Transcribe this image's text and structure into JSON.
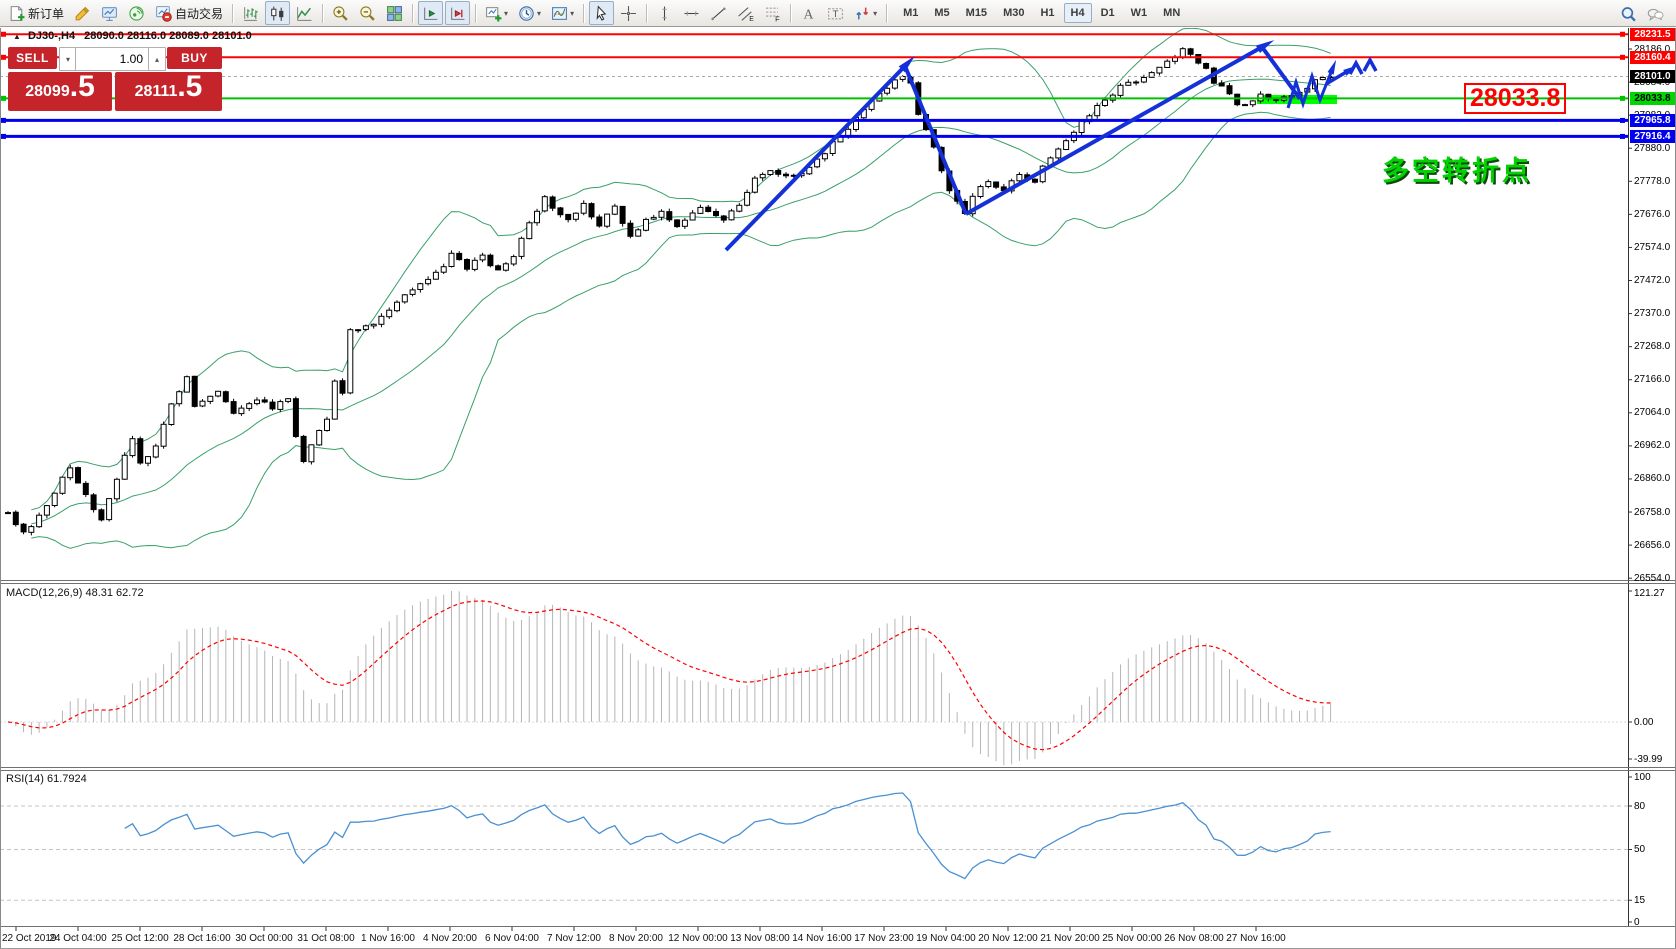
{
  "toolbar": {
    "groups": [
      {
        "buttons": [
          {
            "name": "new-order",
            "icon": "new-order",
            "label": "新订单"
          },
          {
            "name": "metaeditor",
            "icon": "metaeditor"
          },
          {
            "name": "strategy-tester",
            "icon": "strategy-tester"
          },
          {
            "name": "signals",
            "icon": "signals"
          },
          {
            "name": "algo-trading",
            "icon": "algo-trading",
            "label": "自动交易"
          }
        ]
      },
      {
        "buttons": [
          {
            "name": "bar-chart",
            "icon": "bars"
          },
          {
            "name": "candlestick-chart",
            "icon": "candles",
            "selected": true
          },
          {
            "name": "line-chart",
            "icon": "linechart"
          }
        ]
      },
      {
        "buttons": [
          {
            "name": "zoom-in",
            "icon": "zoom-in"
          },
          {
            "name": "zoom-out",
            "icon": "zoom-out"
          },
          {
            "name": "tile-windows",
            "icon": "tile-windows"
          }
        ]
      },
      {
        "buttons": [
          {
            "name": "auto-scroll",
            "icon": "auto-scroll",
            "selected": true
          },
          {
            "name": "chart-shift",
            "icon": "chart-shift",
            "selected": true
          }
        ]
      },
      {
        "buttons": [
          {
            "name": "new-chart",
            "icon": "new-chart",
            "dropdown": true
          },
          {
            "name": "periods",
            "icon": "period-clock",
            "dropdown": true
          },
          {
            "name": "templates",
            "icon": "templates",
            "dropdown": true
          }
        ]
      },
      {
        "buttons": [
          {
            "name": "cursor",
            "icon": "cursor",
            "selected": true
          },
          {
            "name": "crosshair",
            "icon": "crosshair"
          }
        ]
      },
      {
        "buttons": [
          {
            "name": "vertical-line",
            "icon": "vline"
          },
          {
            "name": "horizontal-line",
            "icon": "hline"
          },
          {
            "name": "trendline",
            "icon": "tline"
          },
          {
            "name": "equidistant-channel",
            "icon": "channel"
          },
          {
            "name": "fibonacci",
            "icon": "fibo"
          }
        ]
      },
      {
        "buttons": [
          {
            "name": "text",
            "icon": "text-a"
          },
          {
            "name": "text-label",
            "icon": "text-label"
          },
          {
            "name": "arrows",
            "icon": "arrows-shapes",
            "dropdown": true
          }
        ]
      }
    ],
    "timeframes": [
      "M1",
      "M5",
      "M15",
      "M30",
      "H1",
      "H4",
      "D1",
      "W1",
      "MN"
    ],
    "selected_timeframe": "H4",
    "right_icons": [
      {
        "name": "search",
        "icon": "search"
      },
      {
        "name": "chat",
        "icon": "chat"
      }
    ]
  },
  "trade_panel": {
    "sell_label": "SELL",
    "buy_label": "BUY",
    "volume": "1.00",
    "sell_price": "28099",
    "sell_price_big": ".5",
    "buy_price": "28111",
    "buy_price_big": ".5"
  },
  "chart": {
    "symbol_period": "DJ30-,H4",
    "ohlc_text": "28090.0 28116.0 28089.0 28101.0"
  },
  "price_axis": {
    "ticks": [
      "28186.0",
      "28084.0",
      "27982.0",
      "27880.0",
      "27778.0",
      "27676.0",
      "27574.0",
      "27472.0",
      "27370.0",
      "27268.0",
      "27166.0",
      "27064.0",
      "26962.0",
      "26860.0",
      "26758.0",
      "26656.0",
      "26554.0"
    ],
    "badges": [
      {
        "text": "28231.5",
        "bg": "#ff0000",
        "fg": "#ffffff"
      },
      {
        "text": "28160.4",
        "bg": "#ff0000",
        "fg": "#ffffff"
      },
      {
        "text": "28101.0",
        "bg": "#000000",
        "fg": "#ffffff"
      },
      {
        "text": "28033.8",
        "bg": "#00d600",
        "fg": "#000000"
      },
      {
        "text": "27965.8",
        "bg": "#0000ee",
        "fg": "#ffffff"
      },
      {
        "text": "27916.4",
        "bg": "#0000ee",
        "fg": "#ffffff"
      }
    ]
  },
  "hlines": [
    {
      "price": 28231.5,
      "color": "#ff0000",
      "width": 2
    },
    {
      "price": 28160.4,
      "color": "#ff0000",
      "width": 2
    },
    {
      "price": 28033.8,
      "color": "#00c300",
      "width": 2
    },
    {
      "price": 27965.8,
      "color": "#0000ee",
      "width": 3
    },
    {
      "price": 27916.4,
      "color": "#0000ee",
      "width": 3
    }
  ],
  "current_price": {
    "value": 28101.0,
    "line_color": "#aaaaaa"
  },
  "indicators": {
    "macd": {
      "label": "MACD(12,26,9) 48.31 62.72",
      "value": 48.31,
      "signal": 62.72,
      "axis_labels": [
        "121.27",
        "0.00",
        "-39.99"
      ],
      "histogram_color": "#b5b5b5",
      "signal_color": "#ff0000"
    },
    "rsi": {
      "label": "RSI(14) 61.7924",
      "value": 61.7924,
      "axis_labels": [
        "100",
        "80",
        "50",
        "15",
        "0"
      ],
      "levels": [
        80,
        50,
        15
      ],
      "line_color": "#4a90d2"
    }
  },
  "time_axis": {
    "labels": [
      "22 Oct 2019",
      "24 Oct 04:00",
      "25 Oct 12:00",
      "28 Oct 16:00",
      "30 Oct 00:00",
      "31 Oct 08:00",
      "1 Nov 16:00",
      "4 Nov 20:00",
      "6 Nov 04:00",
      "7 Nov 12:00",
      "8 Nov 20:00",
      "12 Nov 00:00",
      "13 Nov 08:00",
      "14 Nov 16:00",
      "17 Nov 23:00",
      "19 Nov 04:00",
      "20 Nov 12:00",
      "21 Nov 20:00",
      "25 Nov 00:00",
      "26 Nov 08:00",
      "27 Nov 16:00"
    ]
  },
  "annotations": {
    "big_price": "28033.8",
    "turning_point": "多空转折点",
    "highlight_color": "#00ff00",
    "highlight_rect": [
      1257,
      95,
      80,
      9
    ],
    "arrow_color": "#1430d8",
    "trend_arrows": [
      {
        "points": [
          [
            726,
            250
          ],
          [
            905,
            66
          ]
        ],
        "head": true
      },
      {
        "points": [
          [
            905,
            66
          ],
          [
            966,
            214
          ]
        ],
        "head": false
      },
      {
        "points": [
          [
            966,
            214
          ],
          [
            1262,
            47
          ]
        ],
        "head": true
      },
      {
        "points": [
          [
            1262,
            47
          ],
          [
            1300,
            99
          ]
        ],
        "head": false
      }
    ],
    "scribbles": [
      {
        "points": [
          [
            1288,
            108
          ],
          [
            1296,
            82
          ],
          [
            1303,
            104
          ],
          [
            1312,
            76
          ],
          [
            1320,
            100
          ],
          [
            1332,
            70
          ]
        ],
        "head": true,
        "w": 3
      },
      {
        "points": [
          [
            1326,
            84
          ],
          [
            1348,
            71
          ]
        ],
        "head": true,
        "w": 3.5
      },
      {
        "points": [
          [
            1350,
            74
          ],
          [
            1356,
            63
          ],
          [
            1362,
            74
          ]
        ],
        "head": false,
        "w": 3.5
      },
      {
        "points": [
          [
            1364,
            71
          ],
          [
            1370,
            60
          ],
          [
            1376,
            71
          ]
        ],
        "head": false,
        "w": 3.5
      }
    ]
  },
  "chart_data": {
    "type": "candlestick",
    "symbol": "DJ30-",
    "timeframe": "H4",
    "current_ohlc": {
      "open": 28090.0,
      "high": 28116.0,
      "low": 28089.0,
      "close": 28101.0
    },
    "bid": 28099.5,
    "ask": 28111.5,
    "ylim": [
      26554.0,
      28231.5
    ],
    "overlays": [
      "bollinger-bands-green"
    ],
    "scale": {
      "y_ref": 49,
      "price_ref": 28186,
      "points_per_pixel": 3.084
    },
    "price_waypoints": [
      [
        8,
        26760
      ],
      [
        20,
        26690
      ],
      [
        45,
        26780
      ],
      [
        70,
        26900
      ],
      [
        90,
        26760
      ],
      [
        105,
        26735
      ],
      [
        122,
        26930
      ],
      [
        130,
        26990
      ],
      [
        142,
        26910
      ],
      [
        158,
        26960
      ],
      [
        172,
        27090
      ],
      [
        184,
        27170
      ],
      [
        196,
        27090
      ],
      [
        215,
        27130
      ],
      [
        235,
        27060
      ],
      [
        255,
        27110
      ],
      [
        270,
        27075
      ],
      [
        285,
        27110
      ],
      [
        296,
        26990
      ],
      [
        306,
        26920
      ],
      [
        314,
        26960
      ],
      [
        324,
        27050
      ],
      [
        334,
        27160
      ],
      [
        344,
        27120
      ],
      [
        354,
        27320
      ],
      [
        368,
        27330
      ],
      [
        382,
        27355
      ],
      [
        396,
        27400
      ],
      [
        412,
        27445
      ],
      [
        426,
        27480
      ],
      [
        440,
        27520
      ],
      [
        455,
        27555
      ],
      [
        468,
        27510
      ],
      [
        484,
        27545
      ],
      [
        500,
        27500
      ],
      [
        515,
        27550
      ],
      [
        530,
        27645
      ],
      [
        542,
        27735
      ],
      [
        552,
        27690
      ],
      [
        568,
        27660
      ],
      [
        584,
        27705
      ],
      [
        600,
        27645
      ],
      [
        615,
        27695
      ],
      [
        630,
        27605
      ],
      [
        645,
        27660
      ],
      [
        662,
        27685
      ],
      [
        680,
        27645
      ],
      [
        700,
        27695
      ],
      [
        720,
        27665
      ],
      [
        740,
        27700
      ],
      [
        756,
        27785
      ],
      [
        770,
        27815
      ],
      [
        786,
        27790
      ],
      [
        800,
        27805
      ],
      [
        815,
        27845
      ],
      [
        830,
        27895
      ],
      [
        845,
        27945
      ],
      [
        860,
        27995
      ],
      [
        875,
        28030
      ],
      [
        890,
        28065
      ],
      [
        905,
        28105
      ],
      [
        912,
        28080
      ],
      [
        922,
        27990
      ],
      [
        934,
        27880
      ],
      [
        948,
        27750
      ],
      [
        963,
        27685
      ],
      [
        976,
        27735
      ],
      [
        990,
        27775
      ],
      [
        1004,
        27750
      ],
      [
        1018,
        27800
      ],
      [
        1032,
        27775
      ],
      [
        1046,
        27820
      ],
      [
        1060,
        27880
      ],
      [
        1076,
        27935
      ],
      [
        1090,
        27985
      ],
      [
        1105,
        28030
      ],
      [
        1120,
        28070
      ],
      [
        1135,
        28090
      ],
      [
        1150,
        28120
      ],
      [
        1165,
        28150
      ],
      [
        1180,
        28180
      ],
      [
        1193,
        28165
      ],
      [
        1205,
        28130
      ],
      [
        1216,
        28085
      ],
      [
        1228,
        28045
      ],
      [
        1240,
        28010
      ],
      [
        1252,
        28030
      ],
      [
        1264,
        28045
      ],
      [
        1276,
        28025
      ],
      [
        1290,
        28045
      ],
      [
        1304,
        28070
      ],
      [
        1316,
        28085
      ],
      [
        1330,
        28101
      ]
    ]
  }
}
